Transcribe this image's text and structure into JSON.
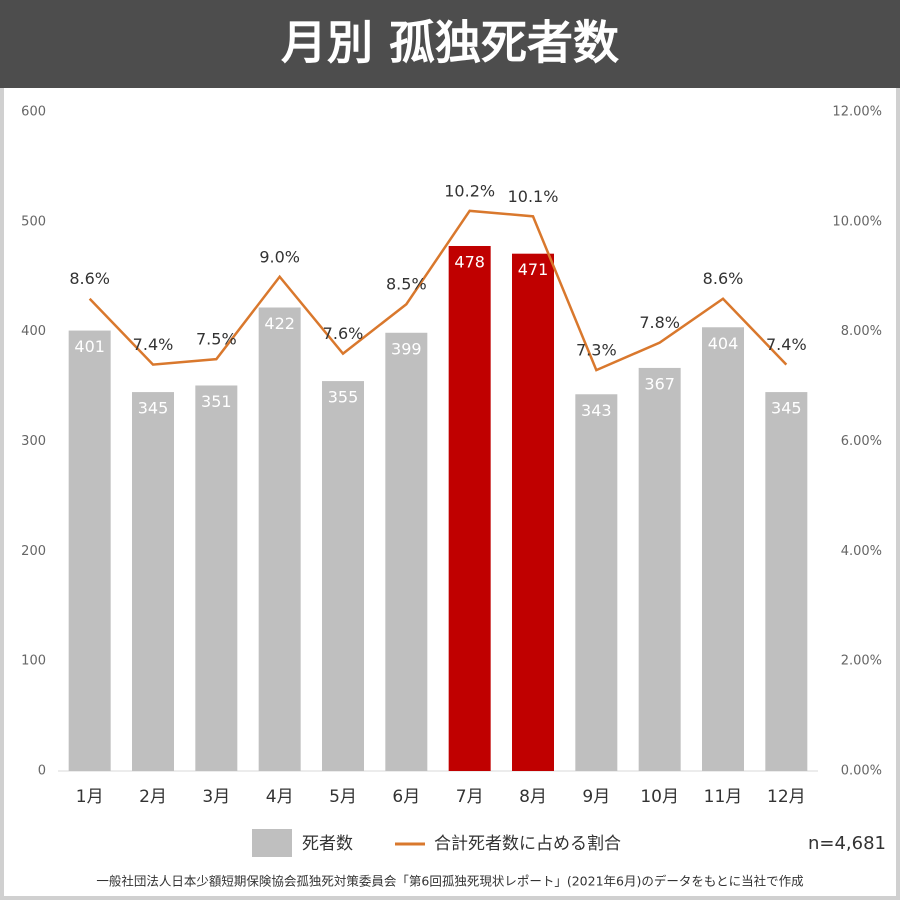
{
  "chart_data": {
    "type": "combo",
    "title": "月別 孤独死者数",
    "categories": [
      "1月",
      "2月",
      "3月",
      "4月",
      "5月",
      "6月",
      "7月",
      "8月",
      "9月",
      "10月",
      "11月",
      "12月"
    ],
    "series": [
      {
        "name": "死者数",
        "color": "#bfbfbf",
        "bar_colors": [
          "#bfbfbf",
          "#bfbfbf",
          "#bfbfbf",
          "#bfbfbf",
          "#bfbfbf",
          "#bfbfbf",
          "#c00000",
          "#c00000",
          "#bfbfbf",
          "#bfbfbf",
          "#bfbfbf",
          "#bfbfbf"
        ],
        "values": [
          401,
          345,
          351,
          422,
          355,
          399,
          478,
          471,
          343,
          367,
          404,
          345
        ]
      },
      {
        "name": "合計死者数に占める割合",
        "color": "#d9782d",
        "axis": "y2",
        "values": [
          8.6,
          7.4,
          7.5,
          9.0,
          7.6,
          8.5,
          10.2,
          10.1,
          7.3,
          7.8,
          8.6,
          7.4
        ],
        "value_labels": [
          "8.6%",
          "7.4%",
          "7.5%",
          "9.0%",
          "7.6%",
          "8.5%",
          "10.2%",
          "10.1%",
          "7.3%",
          "7.8%",
          "8.6%",
          "7.4%"
        ]
      }
    ],
    "ylim": [
      0,
      600
    ],
    "yticks": [
      0,
      100,
      200,
      300,
      400,
      500,
      600
    ],
    "y2lim": [
      0,
      12
    ],
    "y2ticks": [
      {
        "value": 0,
        "label": "0.00%"
      },
      {
        "value": 2,
        "label": "2.00%"
      },
      {
        "value": 4,
        "label": "4.00%"
      },
      {
        "value": 6,
        "label": "6.00%"
      },
      {
        "value": 8,
        "label": "8.00%"
      },
      {
        "value": 10,
        "label": "10.00%"
      },
      {
        "value": 12,
        "label": "12.00%"
      }
    ],
    "grid": false,
    "note": "n=4,681",
    "source": "一般社団法人日本少額短期保険協会孤独死対策委員会「第6回孤独死現状レポート」(2021年6月)のデータをもとに当社で作成"
  }
}
